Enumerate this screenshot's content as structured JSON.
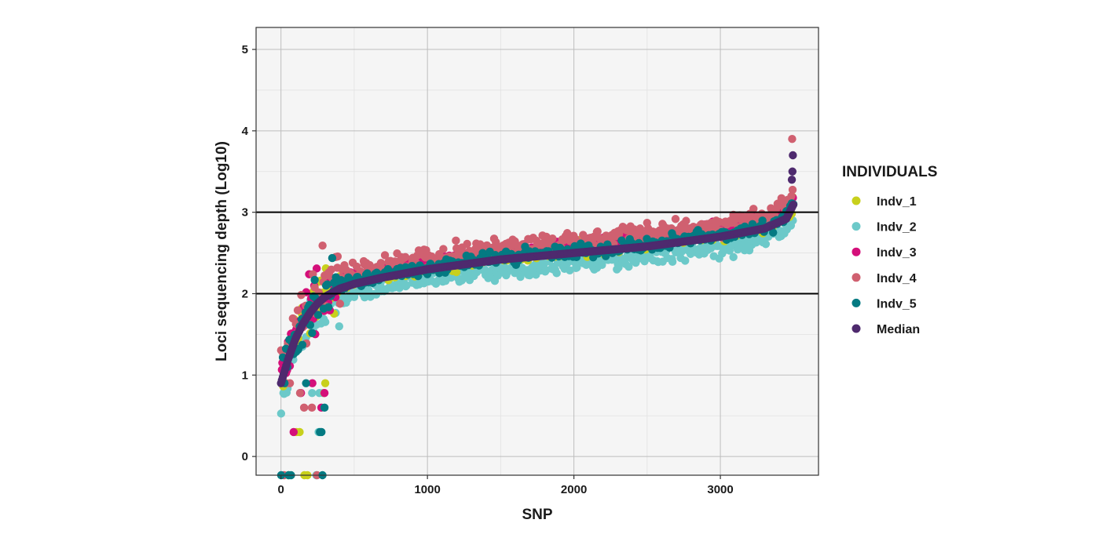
{
  "chart_data": {
    "type": "scatter",
    "title": "",
    "xlabel": "SNP",
    "ylabel": "Loci sequencing depth (Log10)",
    "xlim": [
      -170,
      3670
    ],
    "ylim": [
      -0.23,
      5.27
    ],
    "xticks": [
      0,
      1000,
      2000,
      3000
    ],
    "yticks": [
      0,
      1,
      2,
      3,
      4,
      5
    ],
    "xtick_labels": [
      "0",
      "1000",
      "2000",
      "3000"
    ],
    "ytick_labels": [
      "0",
      "1",
      "2",
      "3",
      "4",
      "5"
    ],
    "grid": true,
    "hlines": [
      2,
      3
    ],
    "n_snps": 3500,
    "legend": {
      "title": "INDIVIDUALS",
      "position": "right"
    },
    "series": [
      {
        "name": "Indv_1",
        "color": "#c8d01c",
        "offset": 0.05,
        "spread": 0.1
      },
      {
        "name": "Indv_2",
        "color": "#6cc9c9",
        "offset": -0.12,
        "spread": 0.12
      },
      {
        "name": "Indv_3",
        "color": "#d40f7a",
        "offset": 0.1,
        "spread": 0.08
      },
      {
        "name": "Indv_4",
        "color": "#d06070",
        "offset": 0.15,
        "spread": 0.12
      },
      {
        "name": "Indv_5",
        "color": "#047a82",
        "offset": 0.02,
        "spread": 0.08
      },
      {
        "name": "Median",
        "color": "#4e2a6e",
        "offset": 0,
        "spread": 0
      }
    ],
    "median_curve": {
      "x": [
        0,
        50,
        100,
        150,
        200,
        250,
        300,
        400,
        500,
        700,
        1000,
        1500,
        2000,
        2500,
        3000,
        3300,
        3450,
        3500
      ],
      "y": [
        0.9,
        1.2,
        1.45,
        1.63,
        1.77,
        1.88,
        1.96,
        2.06,
        2.12,
        2.2,
        2.3,
        2.42,
        2.5,
        2.58,
        2.7,
        2.8,
        2.92,
        3.1
      ]
    },
    "low_depth_levels": [
      -0.23,
      0.3,
      0.6,
      0.78,
      0.9
    ],
    "upper_outliers": [
      {
        "x": 3490,
        "y": 3.9
      },
      {
        "x": 3495,
        "y": 3.7
      },
      {
        "x": 3492,
        "y": 3.5
      },
      {
        "x": 3488,
        "y": 3.4
      }
    ]
  }
}
